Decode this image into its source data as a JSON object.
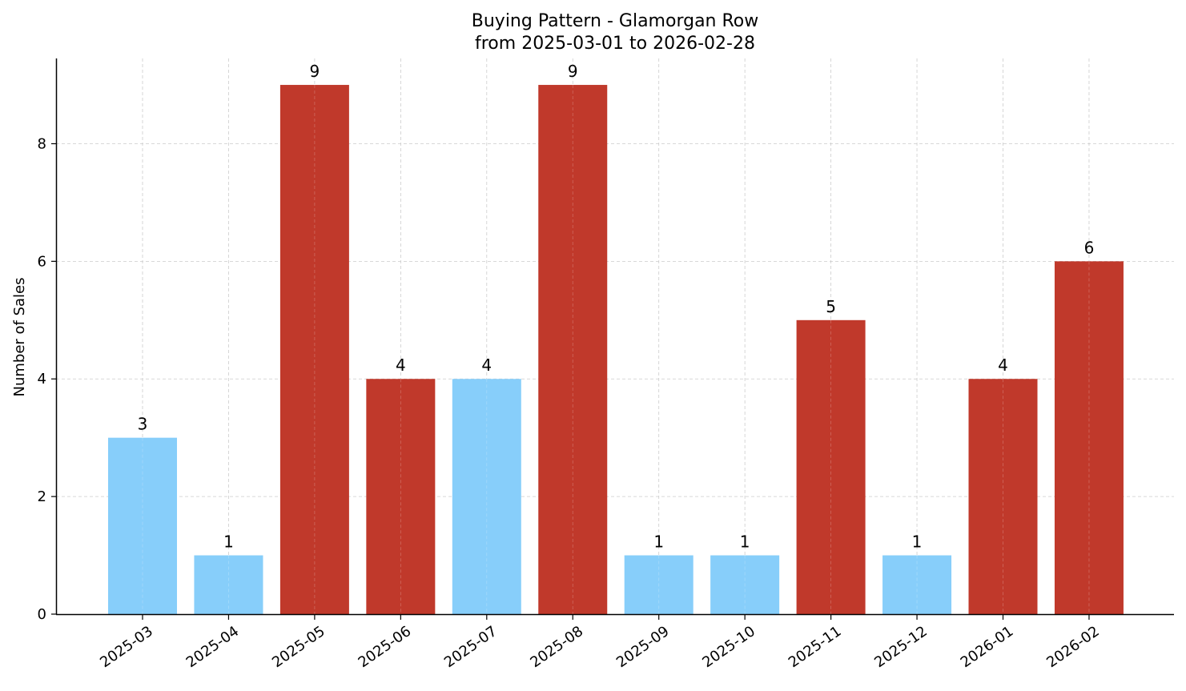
{
  "chart_data": {
    "type": "bar",
    "title": "Buying Pattern - Glamorgan Row",
    "subtitle": "from 2025-03-01 to 2026-02-28",
    "xlabel": "",
    "ylabel": "Number of Sales",
    "categories": [
      "2025-03",
      "2025-04",
      "2025-05",
      "2025-06",
      "2025-07",
      "2025-08",
      "2025-09",
      "2025-10",
      "2025-11",
      "2025-12",
      "2026-01",
      "2026-02"
    ],
    "values": [
      3,
      1,
      9,
      4,
      4,
      9,
      1,
      1,
      5,
      1,
      4,
      6
    ],
    "bar_colors": [
      "#87CEFA",
      "#87CEFA",
      "#C0392B",
      "#C0392B",
      "#87CEFA",
      "#C0392B",
      "#87CEFA",
      "#87CEFA",
      "#C0392B",
      "#87CEFA",
      "#C0392B",
      "#C0392B"
    ],
    "data_labels": [
      "3",
      "1",
      "9",
      "4",
      "4",
      "9",
      "1",
      "1",
      "5",
      "1",
      "4",
      "6"
    ],
    "ylim": [
      0,
      9.45
    ],
    "yticks": [
      0,
      2,
      4,
      6,
      8
    ],
    "grid": true,
    "legend": null,
    "colors": {
      "high": "#C0392B",
      "low": "#87CEFA",
      "grid": "#cccccc",
      "axis": "#000000"
    }
  }
}
